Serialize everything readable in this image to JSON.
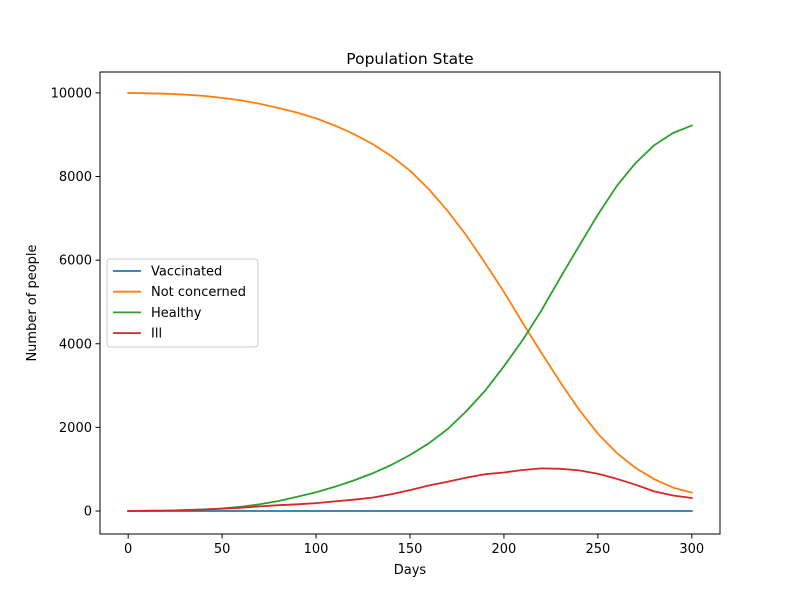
{
  "chart_data": {
    "type": "line",
    "title": "Population State",
    "xlabel": "Days",
    "ylabel": "Number of people",
    "xlim": [
      -15,
      315
    ],
    "ylim": [
      -550,
      10500
    ],
    "xticks": [
      0,
      50,
      100,
      150,
      200,
      250,
      300
    ],
    "yticks": [
      0,
      2000,
      4000,
      6000,
      8000,
      10000
    ],
    "grid": false,
    "legend_position": "center-left",
    "series": [
      {
        "name": "Vaccinated",
        "color": "#1f77b4",
        "x": [
          0,
          300
        ],
        "y": [
          0,
          0
        ]
      },
      {
        "name": "Not concerned",
        "color": "#ff7f0e",
        "x": [
          0,
          10,
          20,
          30,
          40,
          50,
          60,
          70,
          80,
          90,
          100,
          110,
          120,
          130,
          140,
          150,
          160,
          170,
          180,
          190,
          200,
          210,
          220,
          230,
          240,
          250,
          260,
          270,
          280,
          290,
          300
        ],
        "y": [
          10000,
          9990,
          9980,
          9960,
          9930,
          9880,
          9820,
          9740,
          9640,
          9530,
          9390,
          9220,
          9020,
          8780,
          8490,
          8140,
          7700,
          7180,
          6590,
          5930,
          5240,
          4500,
          3780,
          3080,
          2420,
          1850,
          1390,
          1030,
          760,
          560,
          440
        ]
      },
      {
        "name": "Healthy",
        "color": "#2ca02c",
        "x": [
          0,
          10,
          20,
          30,
          40,
          50,
          60,
          70,
          80,
          90,
          100,
          110,
          120,
          130,
          140,
          150,
          160,
          170,
          180,
          190,
          200,
          210,
          220,
          230,
          240,
          250,
          260,
          270,
          280,
          290,
          300
        ],
        "y": [
          0,
          5,
          10,
          20,
          35,
          60,
          100,
          160,
          240,
          340,
          450,
          580,
          730,
          900,
          1100,
          1340,
          1620,
          1960,
          2390,
          2880,
          3460,
          4090,
          4800,
          5580,
          6340,
          7090,
          7770,
          8320,
          8750,
          9040,
          9220
        ]
      },
      {
        "name": "Ill",
        "color": "#d62728",
        "x": [
          0,
          10,
          20,
          30,
          40,
          50,
          60,
          70,
          80,
          90,
          100,
          110,
          120,
          130,
          140,
          150,
          160,
          170,
          180,
          190,
          200,
          210,
          220,
          230,
          240,
          250,
          260,
          270,
          280,
          290,
          300
        ],
        "y": [
          0,
          5,
          10,
          20,
          35,
          55,
          80,
          110,
          140,
          160,
          190,
          230,
          270,
          320,
          400,
          500,
          610,
          700,
          800,
          880,
          920,
          980,
          1020,
          1010,
          970,
          890,
          770,
          630,
          470,
          370,
          310
        ]
      }
    ]
  }
}
